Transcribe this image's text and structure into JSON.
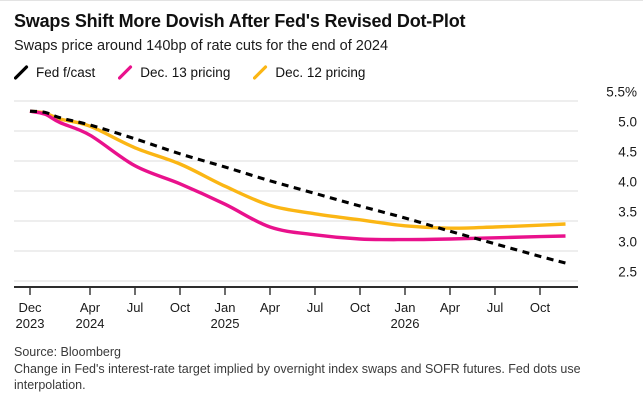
{
  "header": {
    "title": "Swaps Shift More Dovish After Fed's Revised Dot-Plot",
    "subtitle": "Swaps price around 140bp of rate cuts for the end of 2024"
  },
  "legend": {
    "items": [
      {
        "id": "fed-fcast",
        "label": "Fed f/cast",
        "color": "#000000"
      },
      {
        "id": "dec-13-pricing",
        "label": "Dec. 13 pricing",
        "color": "#E9118C"
      },
      {
        "id": "dec-12-pricing",
        "label": "Dec. 12 pricing",
        "color": "#FBB614"
      }
    ]
  },
  "chart_data": {
    "type": "line",
    "title": "Swaps Shift More Dovish After Fed's Revised Dot-Plot",
    "subtitle": "Swaps price around 140bp of rate cuts for the end of 2024",
    "x_unit": "months from Dec 2023",
    "x": [
      0,
      1,
      2,
      4,
      7,
      10,
      13,
      16,
      19,
      22,
      25,
      28,
      31,
      34,
      35.7
    ],
    "series": [
      {
        "name": "Fed f/cast",
        "color": "#000000",
        "dashed": true,
        "width": 3.1,
        "values": [
          5.33,
          5.31,
          5.22,
          5.1,
          4.87,
          4.62,
          4.4,
          4.17,
          3.96,
          3.75,
          3.55,
          3.33,
          3.12,
          2.91,
          2.8
        ]
      },
      {
        "name": "Dec. 13 pricing",
        "color": "#E9118C",
        "dashed": false,
        "width": 3.4,
        "values": [
          5.33,
          5.28,
          5.14,
          4.93,
          4.42,
          4.12,
          3.78,
          3.4,
          3.27,
          3.2,
          3.19,
          3.2,
          3.22,
          3.24,
          3.25
        ]
      },
      {
        "name": "Dec. 12 pricing",
        "color": "#FBB614",
        "dashed": false,
        "width": 3.4,
        "values": [
          5.33,
          5.3,
          5.2,
          5.08,
          4.72,
          4.45,
          4.08,
          3.76,
          3.62,
          3.52,
          3.42,
          3.38,
          3.4,
          3.43,
          3.45
        ]
      }
    ],
    "x_ticks": [
      {
        "m": 0,
        "label": "Dec",
        "year": "2023"
      },
      {
        "m": 4,
        "label": "Apr",
        "year": "2024"
      },
      {
        "m": 7,
        "label": "Jul"
      },
      {
        "m": 10,
        "label": "Oct"
      },
      {
        "m": 13,
        "label": "Jan",
        "year": "2025"
      },
      {
        "m": 16,
        "label": "Apr"
      },
      {
        "m": 19,
        "label": "Jul"
      },
      {
        "m": 22,
        "label": "Oct"
      },
      {
        "m": 25,
        "label": "Jan",
        "year": "2026"
      },
      {
        "m": 28,
        "label": "Apr"
      },
      {
        "m": 31,
        "label": "Jul"
      },
      {
        "m": 34,
        "label": "Oct"
      }
    ],
    "y_ticks": [
      {
        "v": 5.5,
        "label": "5.5%"
      },
      {
        "v": 5.0,
        "label": "5.0"
      },
      {
        "v": 4.5,
        "label": "4.5"
      },
      {
        "v": 4.0,
        "label": "4.0"
      },
      {
        "v": 3.5,
        "label": "3.5"
      },
      {
        "v": 3.0,
        "label": "3.0"
      },
      {
        "v": 2.5,
        "label": "2.5"
      }
    ],
    "ylim": [
      2.45,
      5.6
    ],
    "grid": "horizontal",
    "legend_position": "top",
    "colors": {
      "grid": "#dcdcdc",
      "axis": "#2e2e2e",
      "tick_label": "#1a1a1a"
    }
  },
  "footer": {
    "source": "Source: Bloomberg",
    "note": "Change in Fed's interest-rate target implied by overnight index swaps and SOFR futures. Fed dots use interpolation."
  }
}
